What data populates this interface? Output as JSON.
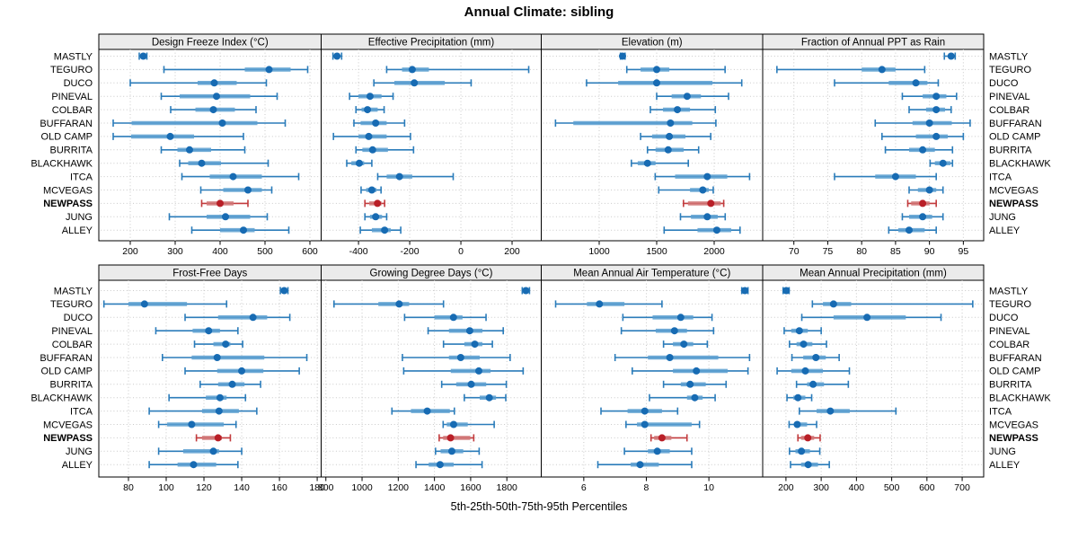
{
  "title": "Annual Climate: sibling",
  "xlabel": "5th-25th-50th-75th-95th Percentiles",
  "percentile_labels": [
    "5th",
    "25th",
    "50th",
    "75th",
    "95th"
  ],
  "sites": [
    "MASTLY",
    "TEGURO",
    "DUCO",
    "PINEVAL",
    "COLBAR",
    "BUFFARAN",
    "OLD CAMP",
    "BURRITA",
    "BLACKHAWK",
    "ITCA",
    "MCVEGAS",
    "NEWPASS",
    "JUNG",
    "ALLEY"
  ],
  "highlight_site": "NEWPASS",
  "colors": {
    "series_line": "#2b7cba",
    "series_band": "#5b9fd0",
    "series_dot": "#176bb3",
    "highlight_line": "#c23b3d",
    "highlight_band": "#d07576",
    "highlight_dot": "#b91f27",
    "grid": "#c9c9c9",
    "strip_bg": "#ebebeb",
    "panel_border": "#000000",
    "text": "#000000"
  },
  "chart_data": [
    {
      "type": "scatter",
      "subtype": "percentile-intervals",
      "row": 0,
      "col": 0,
      "title": "Design Freeze Index (°C)",
      "xlim": [
        130,
        625
      ],
      "ticks": [
        200,
        300,
        400,
        500,
        600
      ],
      "grid": true,
      "values": [
        [
          220,
          225,
          229,
          233,
          237
        ],
        [
          275,
          455,
          509,
          557,
          595
        ],
        [
          200,
          350,
          387,
          437,
          503
        ],
        [
          269,
          310,
          392,
          467,
          527
        ],
        [
          290,
          345,
          385,
          433,
          480
        ],
        [
          162,
          203,
          405,
          483,
          545
        ],
        [
          162,
          202,
          289,
          342,
          452
        ],
        [
          269,
          305,
          332,
          380,
          455
        ],
        [
          310,
          329,
          359,
          402,
          507
        ],
        [
          315,
          377,
          429,
          493,
          575
        ],
        [
          357,
          407,
          462,
          493,
          515
        ],
        [
          359,
          370,
          400,
          430,
          462
        ],
        [
          287,
          370,
          412,
          467,
          505
        ],
        [
          337,
          400,
          452,
          477,
          553
        ]
      ]
    },
    {
      "type": "scatter",
      "subtype": "percentile-intervals",
      "row": 0,
      "col": 1,
      "title": "Effective Precipitation (mm)",
      "xlim": [
        -546,
        314
      ],
      "ticks": [
        -400,
        -200,
        0,
        200
      ],
      "grid": true,
      "values": [
        [
          -500,
          -490,
          -484,
          -474,
          -466
        ],
        [
          -290,
          -230,
          -190,
          -125,
          265
        ],
        [
          -340,
          -260,
          -182,
          -63,
          40
        ],
        [
          -435,
          -400,
          -355,
          -310,
          -265
        ],
        [
          -410,
          -388,
          -365,
          -325,
          -300
        ],
        [
          -418,
          -392,
          -333,
          -290,
          -220
        ],
        [
          -498,
          -400,
          -360,
          -290,
          -197
        ],
        [
          -410,
          -385,
          -345,
          -285,
          -185
        ],
        [
          -446,
          -428,
          -397,
          -378,
          -348
        ],
        [
          -325,
          -290,
          -240,
          -190,
          -30
        ],
        [
          -390,
          -370,
          -348,
          -330,
          -312
        ],
        [
          -375,
          -358,
          -326,
          -310,
          -298
        ],
        [
          -375,
          -355,
          -333,
          -308,
          -290
        ],
        [
          -393,
          -348,
          -298,
          -274,
          -235
        ]
      ]
    },
    {
      "type": "scatter",
      "subtype": "percentile-intervals",
      "row": 0,
      "col": 2,
      "title": "Elevation (m)",
      "xlim": [
        496,
        2422
      ],
      "ticks": [
        1000,
        1500,
        2000
      ],
      "grid": true,
      "values": [
        [
          1185,
          1195,
          1203,
          1213,
          1225
        ],
        [
          1240,
          1360,
          1500,
          1610,
          2095
        ],
        [
          890,
          1165,
          1500,
          1985,
          2240
        ],
        [
          1500,
          1630,
          1765,
          1885,
          2125
        ],
        [
          1445,
          1555,
          1680,
          1790,
          2010
        ],
        [
          620,
          775,
          1620,
          1810,
          2015
        ],
        [
          1360,
          1460,
          1610,
          1750,
          1970
        ],
        [
          1420,
          1490,
          1600,
          1735,
          1865
        ],
        [
          1280,
          1335,
          1420,
          1490,
          1775
        ],
        [
          1487,
          1660,
          1940,
          2114,
          2308
        ],
        [
          1518,
          1790,
          1901,
          1953,
          1992
        ],
        [
          1733,
          1772,
          1971,
          2057,
          2083
        ],
        [
          1707,
          1798,
          1940,
          2031,
          2096
        ],
        [
          1565,
          1855,
          2023,
          2148,
          2225
        ]
      ]
    },
    {
      "type": "scatter",
      "subtype": "percentile-intervals",
      "row": 0,
      "col": 3,
      "title": "Fraction of Annual PPT as Rain",
      "xlim": [
        65.4,
        98
      ],
      "ticks": [
        70,
        75,
        80,
        85,
        90,
        95
      ],
      "grid": true,
      "values": [
        [
          92.2,
          92.8,
          93.2,
          93.5,
          93.8
        ],
        [
          67.5,
          80,
          83,
          85,
          89.3
        ],
        [
          76,
          84,
          88,
          89.7,
          91.3
        ],
        [
          86,
          89,
          91,
          92.5,
          94
        ],
        [
          87,
          89.5,
          91,
          92.3,
          93.2
        ],
        [
          82,
          87.5,
          90,
          93.3,
          96
        ],
        [
          83,
          88,
          91,
          92.7,
          95
        ],
        [
          83.5,
          87,
          89,
          90.8,
          93.4
        ],
        [
          90.1,
          90.8,
          92,
          93.1,
          93.4
        ],
        [
          76,
          82,
          85,
          88,
          91
        ],
        [
          87,
          88.3,
          90,
          91,
          92
        ],
        [
          86.8,
          87.3,
          89,
          90,
          91
        ],
        [
          86,
          87,
          89,
          90.4,
          92
        ],
        [
          84,
          85.4,
          87,
          89.3,
          91
        ]
      ]
    },
    {
      "type": "scatter",
      "subtype": "percentile-intervals",
      "row": 1,
      "col": 0,
      "title": "Frost-Free Days",
      "xlim": [
        64.3,
        182.1
      ],
      "ticks": [
        80,
        100,
        120,
        140,
        160,
        180
      ],
      "grid": true,
      "values": [
        [
          160.5,
          161.5,
          162.5,
          163.5,
          164.5
        ],
        [
          67,
          80,
          88.5,
          111,
          132
        ],
        [
          110,
          127.5,
          146,
          153.5,
          165.5
        ],
        [
          94.5,
          114,
          122.5,
          128.5,
          138
        ],
        [
          115,
          125,
          131.5,
          134,
          140.5
        ],
        [
          98,
          113.5,
          127,
          152,
          174.5
        ],
        [
          110,
          127,
          140,
          151.5,
          170.5
        ],
        [
          118,
          127.5,
          135,
          141.5,
          150
        ],
        [
          101.5,
          121,
          128.5,
          132,
          142
        ],
        [
          91,
          119,
          128,
          138.5,
          148
        ],
        [
          96,
          100.5,
          113.5,
          130.5,
          137
        ],
        [
          116,
          119,
          127.5,
          129.5,
          134
        ],
        [
          96,
          109,
          125,
          128,
          140
        ],
        [
          91,
          106,
          114.5,
          126.5,
          138
        ]
      ]
    },
    {
      "type": "scatter",
      "subtype": "percentile-intervals",
      "row": 1,
      "col": 1,
      "title": "Growing Degree Days (°C)",
      "xlim": [
        774,
        1990
      ],
      "ticks": [
        800,
        1000,
        1200,
        1400,
        1600,
        1800
      ],
      "grid": true,
      "values": [
        [
          1885,
          1895,
          1905,
          1915,
          1925
        ],
        [
          845,
          1090,
          1205,
          1260,
          1450
        ],
        [
          1235,
          1400,
          1505,
          1555,
          1685
        ],
        [
          1365,
          1480,
          1595,
          1665,
          1780
        ],
        [
          1450,
          1565,
          1623,
          1665,
          1720
        ],
        [
          1223,
          1480,
          1545,
          1650,
          1818
        ],
        [
          1230,
          1490,
          1645,
          1710,
          1890
        ],
        [
          1440,
          1520,
          1603,
          1686,
          1797
        ],
        [
          1565,
          1650,
          1703,
          1740,
          1794
        ],
        [
          1165,
          1270,
          1360,
          1485,
          1510
        ],
        [
          1448,
          1468,
          1506,
          1584,
          1730
        ],
        [
          1426,
          1448,
          1489,
          1597,
          1617
        ],
        [
          1406,
          1434,
          1496,
          1559,
          1647
        ],
        [
          1298,
          1368,
          1431,
          1506,
          1663
        ]
      ]
    },
    {
      "type": "scatter",
      "subtype": "percentile-intervals",
      "row": 1,
      "col": 2,
      "title": "Mean Annual Air Temperature (°C)",
      "xlim": [
        4.64,
        11.72
      ],
      "ticks": [
        6,
        8,
        10
      ],
      "grid": true,
      "values": [
        [
          11.05,
          11.1,
          11.15,
          11.2,
          11.25
        ],
        [
          5.1,
          6.1,
          6.5,
          7.3,
          8.5
        ],
        [
          7.25,
          8.2,
          9.1,
          9.5,
          10.1
        ],
        [
          7.2,
          8.3,
          8.9,
          9.3,
          10.15
        ],
        [
          8.55,
          8.85,
          9.2,
          9.5,
          9.95
        ],
        [
          7.0,
          8.05,
          8.75,
          10.3,
          11.3
        ],
        [
          7.55,
          8.85,
          9.6,
          10.6,
          11.25
        ],
        [
          8.55,
          9.1,
          9.4,
          9.9,
          10.55
        ],
        [
          8.1,
          9.3,
          9.55,
          9.8,
          10.2
        ],
        [
          6.55,
          7.4,
          7.95,
          8.5,
          9.0
        ],
        [
          7.35,
          7.7,
          7.95,
          9.45,
          9.7
        ],
        [
          8.15,
          8.25,
          8.5,
          8.8,
          9.3
        ],
        [
          7.3,
          8.05,
          8.35,
          8.75,
          9.45
        ],
        [
          6.45,
          7.5,
          7.8,
          8.4,
          9.45
        ]
      ]
    },
    {
      "type": "scatter",
      "subtype": "percentile-intervals",
      "row": 1,
      "col": 3,
      "title": "Mean Annual Precipitation (mm)",
      "xlim": [
        134,
        761
      ],
      "ticks": [
        200,
        300,
        400,
        500,
        600,
        700
      ],
      "grid": true,
      "values": [
        [
          192,
          197,
          201,
          205,
          209
        ],
        [
          275,
          305,
          335,
          385,
          730
        ],
        [
          245,
          335,
          430,
          540,
          640
        ],
        [
          195,
          215,
          238,
          262,
          300
        ],
        [
          210,
          230,
          250,
          275,
          315
        ],
        [
          217,
          249,
          285,
          313,
          351
        ],
        [
          175,
          215,
          255,
          305,
          380
        ],
        [
          230,
          260,
          277,
          308,
          377
        ],
        [
          203,
          221,
          234,
          255,
          273
        ],
        [
          238,
          287,
          326,
          381,
          512
        ],
        [
          209,
          223,
          232,
          260,
          287
        ],
        [
          234,
          243,
          262,
          280,
          297
        ],
        [
          210,
          227,
          244,
          268,
          296
        ],
        [
          213,
          243,
          263,
          291,
          323
        ]
      ]
    }
  ]
}
